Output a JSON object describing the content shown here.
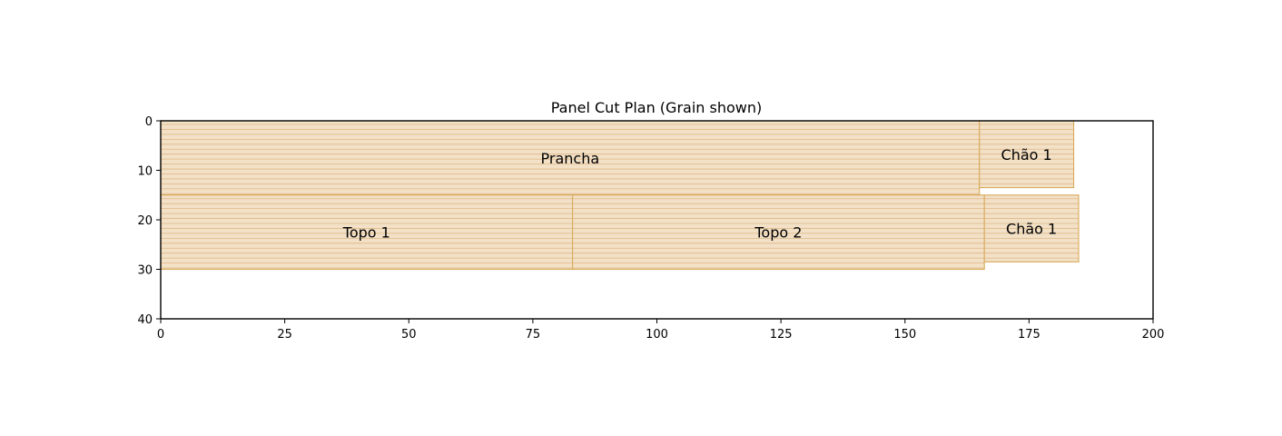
{
  "chart_data": {
    "type": "cut-plan",
    "title": "Panel Cut Plan (Grain shown)",
    "xlabel": "",
    "ylabel": "",
    "xlim": [
      0,
      200
    ],
    "ylim": [
      0,
      40
    ],
    "y_inverted": true,
    "x_ticks": [
      0,
      25,
      50,
      75,
      100,
      125,
      150,
      175,
      200
    ],
    "y_ticks": [
      0,
      10,
      20,
      30,
      40
    ],
    "grain": "horizontal",
    "fill_color": "#f2e0c7",
    "edge_color": "#d9aa5a",
    "grain_color": "#dcb27a",
    "pieces": [
      {
        "label": "Prancha",
        "x": 0,
        "y": 0,
        "w": 165,
        "h": 15
      },
      {
        "label": "Chão 1",
        "x": 165,
        "y": 0,
        "w": 19,
        "h": 13.5
      },
      {
        "label": "Topo 1",
        "x": 0,
        "y": 15,
        "w": 83,
        "h": 15
      },
      {
        "label": "Topo 2",
        "x": 83,
        "y": 15,
        "w": 83,
        "h": 15
      },
      {
        "label": "Chão 1",
        "x": 166,
        "y": 15,
        "w": 19,
        "h": 13.5
      }
    ]
  }
}
